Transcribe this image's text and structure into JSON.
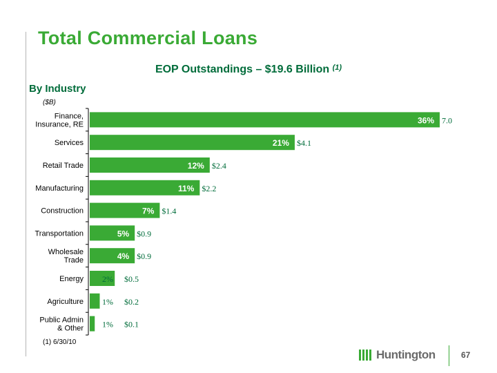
{
  "header": {
    "title": "Total Commercial Loans",
    "subtitle": "EOP Outstandings – $19.6 Billion",
    "subtitle_note": "(1)"
  },
  "section_label": "By Industry",
  "footnote": "(1)  6/30/10",
  "brand": {
    "name": "Huntington",
    "color": "#3aaa35"
  },
  "page_number": "67",
  "chart_data": {
    "type": "bar",
    "orientation": "horizontal",
    "unit_label": "($B)",
    "bar_color": "#3aaa35",
    "categories": [
      [
        "Finance,",
        "Insurance, RE"
      ],
      [
        "Services"
      ],
      [
        "Retail Trade"
      ],
      [
        "Manufacturing"
      ],
      [
        "Construction"
      ],
      [
        "Transportation"
      ],
      [
        "Wholesale",
        "Trade"
      ],
      [
        "Energy"
      ],
      [
        "Agriculture"
      ],
      [
        "Public Admin",
        "& Other"
      ]
    ],
    "values": [
      7.0,
      4.1,
      2.4,
      2.2,
      1.4,
      0.9,
      0.9,
      0.5,
      0.2,
      0.1
    ],
    "value_labels": [
      "7.0",
      "$4.1",
      "$2.4",
      "$2.2",
      "$1.4",
      "$0.9",
      "$0.9",
      "$0.5",
      "$0.2",
      "$0.1"
    ],
    "percent_labels": [
      "36%",
      "21%",
      "12%",
      "11%",
      "7%",
      "5%",
      "4%",
      "2%",
      "1%",
      "1%"
    ],
    "xlim": [
      0,
      7.0
    ]
  }
}
